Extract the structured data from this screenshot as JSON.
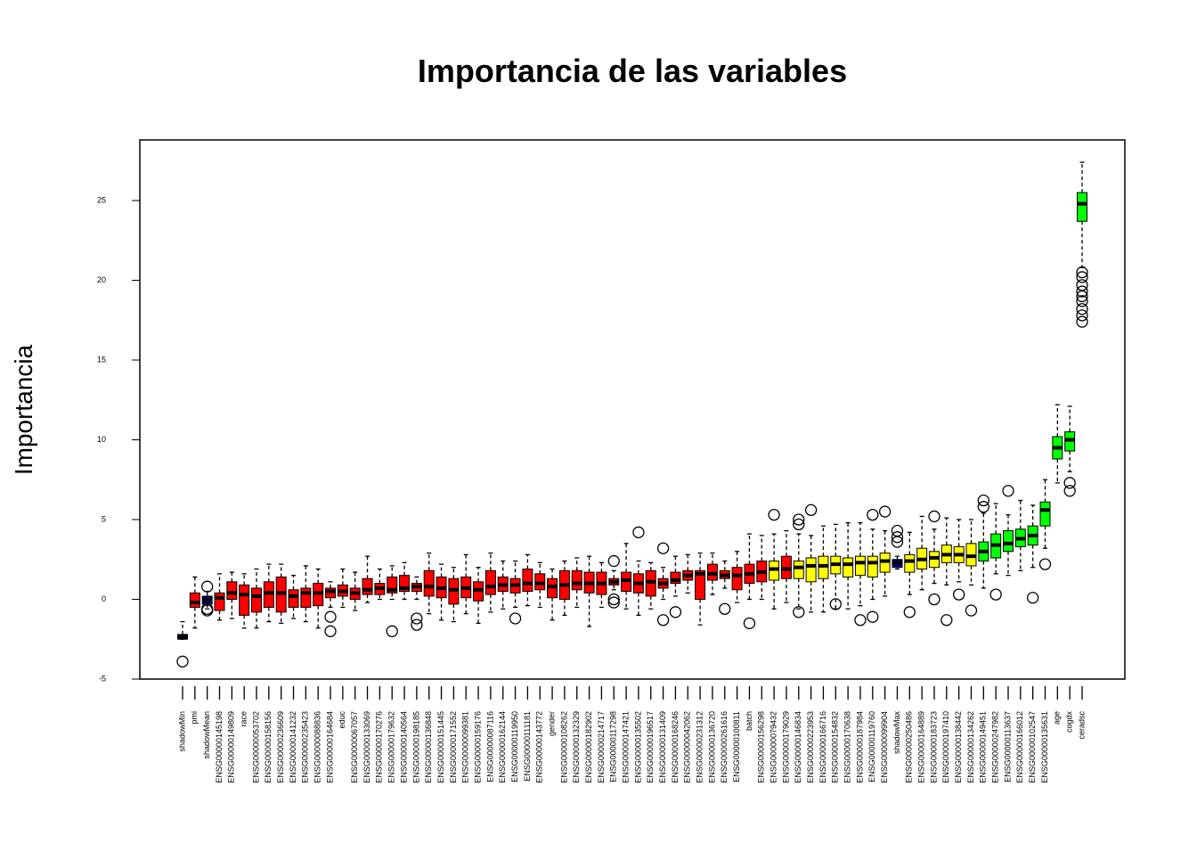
{
  "chart_data": {
    "type": "boxplot",
    "title": "Importancia de las variables",
    "y_label": "Importancia",
    "ylim": [
      -5.0,
      28.8
    ],
    "yticks": [
      -5,
      0,
      5,
      10,
      15,
      20,
      25
    ],
    "categories": [
      "shadowMin",
      "pmi",
      "shadowMean",
      "ENSG00000145198",
      "ENSG00000149809",
      "race",
      "ENSG00000053702",
      "ENSG00000158156",
      "ENSG00000236609",
      "ENSG00000141232",
      "ENSG00000235423",
      "ENSG00000088836",
      "ENSG00000164684",
      "educ",
      "ENSG00000067057",
      "ENSG00000133069",
      "ENSG00000170276",
      "ENSG00000179632",
      "ENSG00000140564",
      "ENSG00000198185",
      "ENSG00000136848",
      "ENSG00000151445",
      "ENSG00000171552",
      "ENSG00000099381",
      "ENSG00000159176",
      "ENSG00000087116",
      "ENSG00000162144",
      "ENSG00000119950",
      "ENSG00000111181",
      "ENSG00000143772",
      "gender",
      "ENSG00000108262",
      "ENSG00000132329",
      "ENSG00000182902",
      "ENSG00000214717",
      "ENSG00000117298",
      "ENSG00000147421",
      "ENSG00000135502",
      "ENSG00000196517",
      "ENSG00000131409",
      "ENSG00000168246",
      "ENSG00000042062",
      "ENSG00000231312",
      "ENSG00000136720",
      "ENSG00000261616",
      "ENSG00000100811",
      "batch",
      "ENSG00000156298",
      "ENSG00000079432",
      "ENSG00000179029",
      "ENSG00000146834",
      "ENSG00000223953",
      "ENSG00000166716",
      "ENSG00000154832",
      "ENSG00000170638",
      "ENSG00000187984",
      "ENSG00000119760",
      "ENSG00000099904",
      "shadowMax",
      "ENSG00000250486",
      "ENSG00000164889",
      "ENSG00000183723",
      "ENSG00000197410",
      "ENSG00000138442",
      "ENSG00000134262",
      "ENSG00000149451",
      "ENSG00000247982",
      "ENSG00000113637",
      "ENSG00000166012",
      "ENSG00000102547",
      "ENSG00000135631",
      "age",
      "cogdx",
      "ceradsc"
    ],
    "boxes": [
      {
        "whislo": -2.5,
        "q1": -2.5,
        "med": -2.35,
        "q3": -2.2,
        "whishi": -1.4,
        "fliers": [
          -3.9
        ],
        "color": "#00008b"
      },
      {
        "whislo": -1.8,
        "q1": -0.5,
        "med": -0.2,
        "q3": 0.4,
        "whishi": 1.4,
        "fliers": [],
        "color": "#ff0000"
      },
      {
        "whislo": -0.6,
        "q1": -0.3,
        "med": 0.0,
        "q3": 0.2,
        "whishi": 0.5,
        "fliers": [
          0.8,
          -0.6,
          -0.7
        ],
        "color": "#00008b"
      },
      {
        "whislo": -1.3,
        "q1": -0.7,
        "med": 0.1,
        "q3": 0.4,
        "whishi": 1.6,
        "fliers": [],
        "color": "#ff0000"
      },
      {
        "whislo": -1.2,
        "q1": 0.0,
        "med": 0.4,
        "q3": 1.1,
        "whishi": 1.7,
        "fliers": [],
        "color": "#ff0000"
      },
      {
        "whislo": -1.8,
        "q1": -1.0,
        "med": 0.3,
        "q3": 0.9,
        "whishi": 1.6,
        "fliers": [],
        "color": "#ff0000"
      },
      {
        "whislo": -1.8,
        "q1": -0.8,
        "med": 0.2,
        "q3": 0.7,
        "whishi": 1.9,
        "fliers": [],
        "color": "#ff0000"
      },
      {
        "whislo": -1.4,
        "q1": -0.5,
        "med": 0.4,
        "q3": 1.1,
        "whishi": 2.2,
        "fliers": [],
        "color": "#ff0000"
      },
      {
        "whislo": -1.5,
        "q1": -0.8,
        "med": 0.4,
        "q3": 1.4,
        "whishi": 2.2,
        "fliers": [],
        "color": "#ff0000"
      },
      {
        "whislo": -1.2,
        "q1": -0.5,
        "med": 0.2,
        "q3": 0.6,
        "whishi": 1.5,
        "fliers": [],
        "color": "#ff0000"
      },
      {
        "whislo": -1.4,
        "q1": -0.5,
        "med": 0.4,
        "q3": 0.7,
        "whishi": 2.1,
        "fliers": [],
        "color": "#ff0000"
      },
      {
        "whislo": -1.8,
        "q1": -0.4,
        "med": 0.4,
        "q3": 1.0,
        "whishi": 1.9,
        "fliers": [],
        "color": "#ff0000"
      },
      {
        "whislo": -0.5,
        "q1": 0.1,
        "med": 0.5,
        "q3": 0.7,
        "whishi": 1.1,
        "fliers": [
          -1.1,
          -2.0
        ],
        "color": "#ff0000"
      },
      {
        "whislo": -0.5,
        "q1": 0.2,
        "med": 0.5,
        "q3": 0.9,
        "whishi": 1.9,
        "fliers": [],
        "color": "#ff0000"
      },
      {
        "whislo": -0.7,
        "q1": 0.0,
        "med": 0.4,
        "q3": 0.7,
        "whishi": 1.7,
        "fliers": [],
        "color": "#ff0000"
      },
      {
        "whislo": -0.2,
        "q1": 0.3,
        "med": 0.6,
        "q3": 1.3,
        "whishi": 2.7,
        "fliers": [],
        "color": "#ff0000"
      },
      {
        "whislo": 0.0,
        "q1": 0.3,
        "med": 0.7,
        "q3": 1.0,
        "whishi": 1.9,
        "fliers": [],
        "color": "#ff0000"
      },
      {
        "whislo": 0.0,
        "q1": 0.4,
        "med": 0.6,
        "q3": 1.4,
        "whishi": 2.1,
        "fliers": [
          -2.0
        ],
        "color": "#ff0000"
      },
      {
        "whislo": 0.0,
        "q1": 0.5,
        "med": 0.7,
        "q3": 1.5,
        "whishi": 2.3,
        "fliers": [],
        "color": "#ff0000"
      },
      {
        "whislo": 0.0,
        "q1": 0.5,
        "med": 0.8,
        "q3": 1.0,
        "whishi": 1.4,
        "fliers": [
          -1.2,
          -1.6
        ],
        "color": "#ff0000"
      },
      {
        "whislo": -0.9,
        "q1": 0.2,
        "med": 0.8,
        "q3": 1.8,
        "whishi": 2.9,
        "fliers": [],
        "color": "#ff0000"
      },
      {
        "whislo": -1.3,
        "q1": 0.1,
        "med": 0.7,
        "q3": 1.4,
        "whishi": 2.2,
        "fliers": [],
        "color": "#ff0000"
      },
      {
        "whislo": -1.4,
        "q1": -0.3,
        "med": 0.6,
        "q3": 1.3,
        "whishi": 2.0,
        "fliers": [],
        "color": "#ff0000"
      },
      {
        "whislo": -0.9,
        "q1": 0.1,
        "med": 0.7,
        "q3": 1.4,
        "whishi": 2.8,
        "fliers": [],
        "color": "#ff0000"
      },
      {
        "whislo": -1.5,
        "q1": -0.1,
        "med": 0.6,
        "q3": 1.1,
        "whishi": 2.0,
        "fliers": [],
        "color": "#ff0000"
      },
      {
        "whislo": -0.8,
        "q1": 0.3,
        "med": 0.8,
        "q3": 1.8,
        "whishi": 2.9,
        "fliers": [],
        "color": "#ff0000"
      },
      {
        "whislo": -0.6,
        "q1": 0.5,
        "med": 0.9,
        "q3": 1.4,
        "whishi": 2.4,
        "fliers": [],
        "color": "#ff0000"
      },
      {
        "whislo": -0.5,
        "q1": 0.4,
        "med": 0.9,
        "q3": 1.3,
        "whishi": 2.4,
        "fliers": [
          -1.2
        ],
        "color": "#ff0000"
      },
      {
        "whislo": -0.4,
        "q1": 0.5,
        "med": 1.0,
        "q3": 1.9,
        "whishi": 2.8,
        "fliers": [],
        "color": "#ff0000"
      },
      {
        "whislo": -0.5,
        "q1": 0.6,
        "med": 1.0,
        "q3": 1.6,
        "whishi": 2.3,
        "fliers": [],
        "color": "#ff0000"
      },
      {
        "whislo": -1.3,
        "q1": 0.1,
        "med": 0.8,
        "q3": 1.3,
        "whishi": 1.9,
        "fliers": [],
        "color": "#ff0000"
      },
      {
        "whislo": -1.0,
        "q1": 0.0,
        "med": 0.9,
        "q3": 1.8,
        "whishi": 2.4,
        "fliers": [],
        "color": "#ff0000"
      },
      {
        "whislo": -0.5,
        "q1": 0.6,
        "med": 1.0,
        "q3": 1.8,
        "whishi": 2.6,
        "fliers": [],
        "color": "#ff0000"
      },
      {
        "whislo": -1.7,
        "q1": 0.4,
        "med": 1.0,
        "q3": 1.7,
        "whishi": 2.7,
        "fliers": [],
        "color": "#ff0000"
      },
      {
        "whislo": -0.5,
        "q1": 0.3,
        "med": 1.0,
        "q3": 1.7,
        "whishi": 2.3,
        "fliers": [],
        "color": "#ff0000"
      },
      {
        "whislo": 0.6,
        "q1": 0.9,
        "med": 1.1,
        "q3": 1.3,
        "whishi": 1.8,
        "fliers": [
          2.4,
          0.0,
          -0.2
        ],
        "color": "#ff0000"
      },
      {
        "whislo": -0.6,
        "q1": 0.5,
        "med": 1.2,
        "q3": 1.7,
        "whishi": 3.5,
        "fliers": [],
        "color": "#ff0000"
      },
      {
        "whislo": -1.0,
        "q1": 0.4,
        "med": 1.0,
        "q3": 1.6,
        "whishi": 2.4,
        "fliers": [
          4.2
        ],
        "color": "#ff0000"
      },
      {
        "whislo": -0.6,
        "q1": 0.2,
        "med": 1.1,
        "q3": 1.8,
        "whishi": 2.3,
        "fliers": [],
        "color": "#ff0000"
      },
      {
        "whislo": 0.0,
        "q1": 0.7,
        "med": 1.0,
        "q3": 1.3,
        "whishi": 2.0,
        "fliers": [
          3.2,
          -1.3
        ],
        "color": "#ff0000"
      },
      {
        "whislo": 0.2,
        "q1": 1.0,
        "med": 1.2,
        "q3": 1.7,
        "whishi": 2.7,
        "fliers": [
          -0.8
        ],
        "color": "#ff0000"
      },
      {
        "whislo": 0.4,
        "q1": 1.2,
        "med": 1.5,
        "q3": 1.8,
        "whishi": 2.8,
        "fliers": [],
        "color": "#ff0000"
      },
      {
        "whislo": -1.6,
        "q1": 0.0,
        "med": 1.6,
        "q3": 1.8,
        "whishi": 2.9,
        "fliers": [],
        "color": "#ff0000"
      },
      {
        "whislo": 0.3,
        "q1": 1.2,
        "med": 1.6,
        "q3": 2.2,
        "whishi": 2.9,
        "fliers": [],
        "color": "#ff0000"
      },
      {
        "whislo": 0.7,
        "q1": 1.3,
        "med": 1.5,
        "q3": 1.8,
        "whishi": 2.4,
        "fliers": [
          -0.6
        ],
        "color": "#ff0000"
      },
      {
        "whislo": -0.2,
        "q1": 0.6,
        "med": 1.5,
        "q3": 2.0,
        "whishi": 3.0,
        "fliers": [],
        "color": "#ff0000"
      },
      {
        "whislo": 0.0,
        "q1": 1.0,
        "med": 1.6,
        "q3": 2.2,
        "whishi": 4.1,
        "fliers": [
          -1.5
        ],
        "color": "#ff0000"
      },
      {
        "whislo": 0.0,
        "q1": 1.1,
        "med": 1.7,
        "q3": 2.4,
        "whishi": 4.0,
        "fliers": [],
        "color": "#ff0000"
      },
      {
        "whislo": -0.6,
        "q1": 1.2,
        "med": 1.9,
        "q3": 2.4,
        "whishi": 4.1,
        "fliers": [
          5.3
        ],
        "color": "#ffff00"
      },
      {
        "whislo": -0.2,
        "q1": 1.3,
        "med": 1.9,
        "q3": 2.7,
        "whishi": 4.3,
        "fliers": [],
        "color": "#ff0000"
      },
      {
        "whislo": -0.6,
        "q1": 1.3,
        "med": 2.0,
        "q3": 2.4,
        "whishi": 4.1,
        "fliers": [
          5.0,
          4.7,
          -0.8
        ],
        "color": "#ffff00"
      },
      {
        "whislo": -0.8,
        "q1": 1.1,
        "med": 2.1,
        "q3": 2.6,
        "whishi": 4.0,
        "fliers": [
          5.6
        ],
        "color": "#ffff00"
      },
      {
        "whislo": -0.8,
        "q1": 1.3,
        "med": 2.1,
        "q3": 2.7,
        "whishi": 4.6,
        "fliers": [],
        "color": "#ffff00"
      },
      {
        "whislo": -0.6,
        "q1": 1.6,
        "med": 2.2,
        "q3": 2.7,
        "whishi": 4.7,
        "fliers": [
          -0.3
        ],
        "color": "#ffff00"
      },
      {
        "whislo": -0.6,
        "q1": 1.4,
        "med": 2.2,
        "q3": 2.6,
        "whishi": 4.8,
        "fliers": [],
        "color": "#ffff00"
      },
      {
        "whislo": -0.4,
        "q1": 1.5,
        "med": 2.3,
        "q3": 2.7,
        "whishi": 4.8,
        "fliers": [
          -1.3
        ],
        "color": "#ffff00"
      },
      {
        "whislo": 0.0,
        "q1": 1.4,
        "med": 2.3,
        "q3": 2.7,
        "whishi": 4.4,
        "fliers": [
          5.3,
          -1.1
        ],
        "color": "#ffff00"
      },
      {
        "whislo": 0.2,
        "q1": 1.7,
        "med": 2.4,
        "q3": 2.9,
        "whishi": 4.3,
        "fliers": [
          5.5
        ],
        "color": "#ffff00"
      },
      {
        "whislo": 1.9,
        "q1": 2.0,
        "med": 2.3,
        "q3": 2.5,
        "whishi": 2.7,
        "fliers": [
          4.3,
          3.9,
          3.6
        ],
        "color": "#00008b"
      },
      {
        "whislo": 0.3,
        "q1": 1.7,
        "med": 2.4,
        "q3": 2.8,
        "whishi": 4.2,
        "fliers": [
          -0.8
        ],
        "color": "#ffff00"
      },
      {
        "whislo": 0.6,
        "q1": 1.9,
        "med": 2.5,
        "q3": 3.2,
        "whishi": 5.2,
        "fliers": [],
        "color": "#ffff00"
      },
      {
        "whislo": 1.0,
        "q1": 2.0,
        "med": 2.6,
        "q3": 3.0,
        "whishi": 4.4,
        "fliers": [
          5.2,
          0.0
        ],
        "color": "#ffff00"
      },
      {
        "whislo": 0.9,
        "q1": 2.3,
        "med": 2.8,
        "q3": 3.4,
        "whishi": 5.1,
        "fliers": [
          -1.3
        ],
        "color": "#ffff00"
      },
      {
        "whislo": 1.1,
        "q1": 2.3,
        "med": 2.8,
        "q3": 3.3,
        "whishi": 5.0,
        "fliers": [
          0.3
        ],
        "color": "#ffff00"
      },
      {
        "whislo": 0.9,
        "q1": 2.1,
        "med": 2.7,
        "q3": 3.5,
        "whishi": 5.0,
        "fliers": [
          -0.7
        ],
        "color": "#ffff00"
      },
      {
        "whislo": 0.7,
        "q1": 2.4,
        "med": 3.0,
        "q3": 3.6,
        "whishi": 5.4,
        "fliers": [
          6.2,
          5.8
        ],
        "color": "#00ff00"
      },
      {
        "whislo": 1.6,
        "q1": 2.6,
        "med": 3.4,
        "q3": 4.1,
        "whishi": 6.0,
        "fliers": [
          0.3
        ],
        "color": "#00ff00"
      },
      {
        "whislo": 1.5,
        "q1": 3.0,
        "med": 3.5,
        "q3": 4.3,
        "whishi": 5.3,
        "fliers": [
          6.8
        ],
        "color": "#00ff00"
      },
      {
        "whislo": 1.8,
        "q1": 3.3,
        "med": 3.8,
        "q3": 4.4,
        "whishi": 6.2,
        "fliers": [],
        "color": "#00ff00"
      },
      {
        "whislo": 2.0,
        "q1": 3.4,
        "med": 4.0,
        "q3": 4.6,
        "whishi": 5.9,
        "fliers": [
          0.1
        ],
        "color": "#00ff00"
      },
      {
        "whislo": 3.2,
        "q1": 4.6,
        "med": 5.6,
        "q3": 6.1,
        "whishi": 7.5,
        "fliers": [
          2.2
        ],
        "color": "#00ff00"
      },
      {
        "whislo": 7.3,
        "q1": 8.8,
        "med": 9.5,
        "q3": 10.2,
        "whishi": 12.2,
        "fliers": [],
        "color": "#00ff00"
      },
      {
        "whislo": 8.0,
        "q1": 9.3,
        "med": 10.0,
        "q3": 10.5,
        "whishi": 12.1,
        "fliers": [
          7.3,
          6.8
        ],
        "color": "#00ff00"
      },
      {
        "whislo": 20.8,
        "q1": 23.7,
        "med": 24.8,
        "q3": 25.5,
        "whishi": 27.4,
        "fliers": [
          20.5,
          20.2,
          19.7,
          19.3,
          19.0,
          18.7,
          18.2,
          17.8,
          17.4
        ],
        "color": "#00ff00"
      }
    ]
  }
}
